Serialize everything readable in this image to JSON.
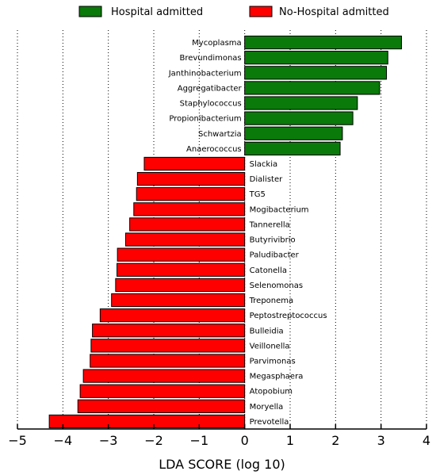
{
  "chart_data": {
    "type": "bar",
    "orientation": "horizontal",
    "xlabel": "LDA SCORE (log 10)",
    "xlim": [
      -5,
      4
    ],
    "x_ticks": [
      -5,
      -4,
      -3,
      -2,
      -1,
      0,
      1,
      2,
      3,
      4
    ],
    "x_tick_labels": [
      "−5",
      "−4",
      "−3",
      "−2",
      "−1",
      "0",
      "1",
      "2",
      "3",
      "4"
    ],
    "grid": "vertical dotted",
    "legend_position": "top",
    "legend": [
      {
        "name": "Hospital admitted",
        "color": "#0a7a0a"
      },
      {
        "name": "No-Hospital admitted",
        "color": "#ff0000"
      }
    ],
    "categories": [
      "Mycoplasma",
      "Brevundimonas",
      "Janthinobacterium",
      "Aggregatibacter",
      "Staphylococcus",
      "Propionibacterium",
      "Schwartzia",
      "Anaerococcus",
      "Slackia",
      "Dialister",
      "TG5",
      "Mogibacterium",
      "Tannerella",
      "Butyrivibrio",
      "Paludibacter",
      "Catonella",
      "Selenomonas",
      "Treponema",
      "Peptostreptococcus",
      "Bulleidia",
      "Veillonella",
      "Parvimonas",
      "Megasphaera",
      "Atopobium",
      "Moryella",
      "Prevotella"
    ],
    "series": [
      {
        "name": "Hospital admitted",
        "color": "#0a7a0a",
        "values": [
          3.45,
          3.15,
          3.12,
          2.97,
          2.48,
          2.38,
          2.15,
          2.1,
          null,
          null,
          null,
          null,
          null,
          null,
          null,
          null,
          null,
          null,
          null,
          null,
          null,
          null,
          null,
          null,
          null,
          null
        ]
      },
      {
        "name": "No-Hospital admitted",
        "color": "#ff0000",
        "values": [
          null,
          null,
          null,
          null,
          null,
          null,
          null,
          null,
          -2.21,
          -2.36,
          -2.38,
          -2.44,
          -2.53,
          -2.62,
          -2.8,
          -2.81,
          -2.84,
          -2.93,
          -3.18,
          -3.35,
          -3.38,
          -3.4,
          -3.55,
          -3.62,
          -3.67,
          -4.3
        ]
      }
    ],
    "bar_height_fraction": 0.85
  }
}
